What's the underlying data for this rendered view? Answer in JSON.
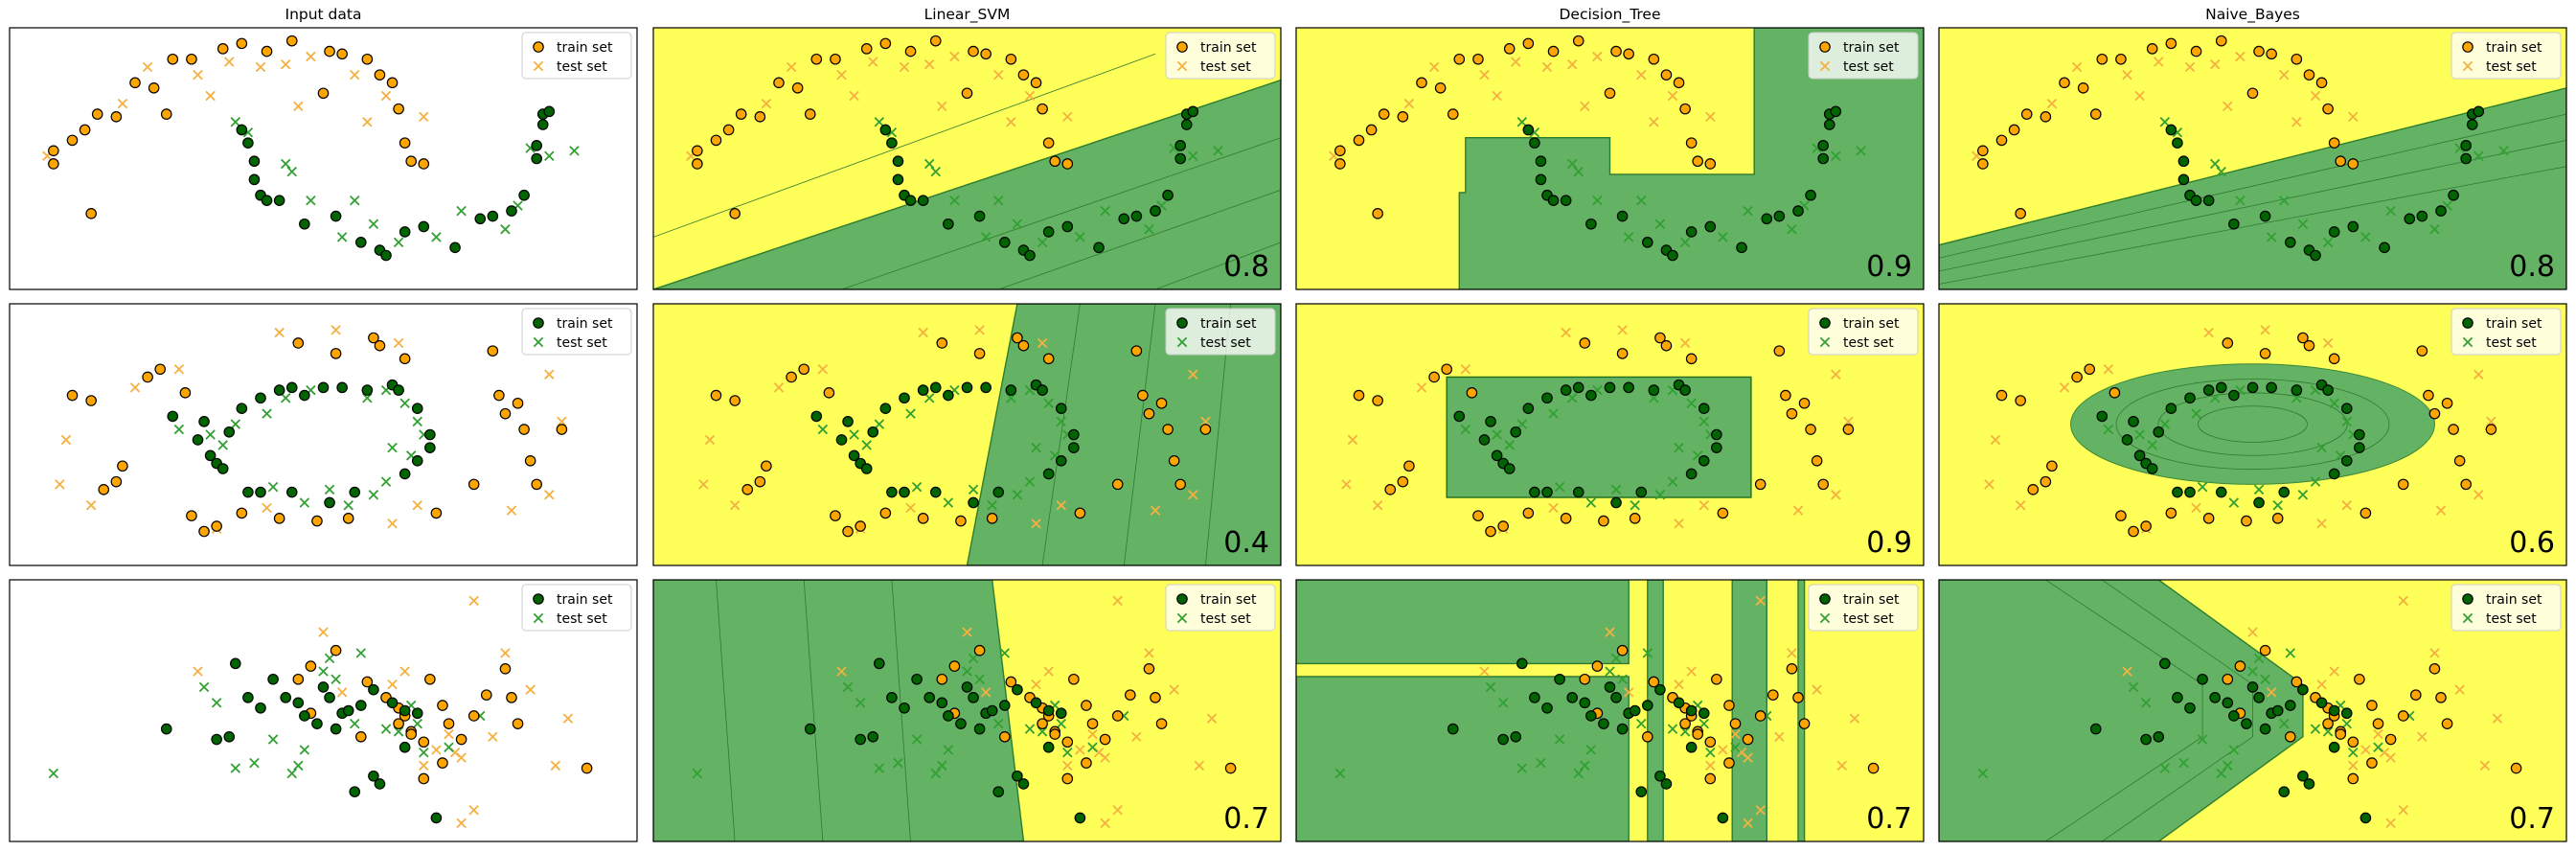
{
  "columns": [
    "Input data",
    "Linear_SVM",
    "Decision_Tree",
    "Naive_Bayes"
  ],
  "legend": {
    "train": "train set",
    "test": "test set"
  },
  "colors": {
    "class0": "#ffa500",
    "class1_dark": "#006400",
    "class1_test": "#32a032",
    "region_yellow": "#ffff5a",
    "region_green": "#64b264"
  },
  "chart_data": [
    {
      "type": "scatter",
      "dataset": "moons",
      "scores": [
        "",
        "0.8",
        "0.9",
        "0.8"
      ],
      "class0_color": "#ffa500",
      "class1_color": "#006400",
      "train0": [
        [
          0.07,
          0.47
        ],
        [
          0.1,
          0.43
        ],
        [
          0.07,
          0.52
        ],
        [
          0.12,
          0.39
        ],
        [
          0.14,
          0.33
        ],
        [
          0.17,
          0.34
        ],
        [
          0.2,
          0.21
        ],
        [
          0.23,
          0.23
        ],
        [
          0.26,
          0.12
        ],
        [
          0.29,
          0.12
        ],
        [
          0.34,
          0.08
        ],
        [
          0.37,
          0.06
        ],
        [
          0.41,
          0.09
        ],
        [
          0.45,
          0.05
        ],
        [
          0.51,
          0.09
        ],
        [
          0.53,
          0.1
        ],
        [
          0.57,
          0.12
        ],
        [
          0.59,
          0.18
        ],
        [
          0.61,
          0.21
        ],
        [
          0.62,
          0.31
        ],
        [
          0.63,
          0.44
        ],
        [
          0.64,
          0.51
        ],
        [
          0.66,
          0.52
        ],
        [
          0.5,
          0.25
        ],
        [
          0.25,
          0.33
        ],
        [
          0.13,
          0.71
        ]
      ],
      "test0": [
        [
          0.06,
          0.49
        ],
        [
          0.18,
          0.29
        ],
        [
          0.22,
          0.15
        ],
        [
          0.3,
          0.18
        ],
        [
          0.35,
          0.13
        ],
        [
          0.4,
          0.15
        ],
        [
          0.44,
          0.14
        ],
        [
          0.48,
          0.11
        ],
        [
          0.55,
          0.18
        ],
        [
          0.6,
          0.26
        ],
        [
          0.66,
          0.34
        ],
        [
          0.57,
          0.36
        ],
        [
          0.46,
          0.3
        ],
        [
          0.32,
          0.26
        ]
      ],
      "train1": [
        [
          0.37,
          0.39
        ],
        [
          0.38,
          0.44
        ],
        [
          0.39,
          0.51
        ],
        [
          0.39,
          0.58
        ],
        [
          0.4,
          0.64
        ],
        [
          0.41,
          0.66
        ],
        [
          0.43,
          0.66
        ],
        [
          0.47,
          0.75
        ],
        [
          0.52,
          0.72
        ],
        [
          0.56,
          0.82
        ],
        [
          0.59,
          0.85
        ],
        [
          0.63,
          0.78
        ],
        [
          0.71,
          0.84
        ],
        [
          0.75,
          0.73
        ],
        [
          0.77,
          0.72
        ],
        [
          0.8,
          0.7
        ],
        [
          0.82,
          0.64
        ],
        [
          0.84,
          0.5
        ],
        [
          0.84,
          0.45
        ],
        [
          0.85,
          0.37
        ],
        [
          0.85,
          0.33
        ],
        [
          0.86,
          0.32
        ],
        [
          0.6,
          0.87
        ],
        [
          0.66,
          0.76
        ]
      ],
      "test1": [
        [
          0.36,
          0.36
        ],
        [
          0.38,
          0.4
        ],
        [
          0.44,
          0.52
        ],
        [
          0.45,
          0.55
        ],
        [
          0.48,
          0.66
        ],
        [
          0.53,
          0.8
        ],
        [
          0.58,
          0.75
        ],
        [
          0.62,
          0.82
        ],
        [
          0.68,
          0.8
        ],
        [
          0.72,
          0.7
        ],
        [
          0.79,
          0.77
        ],
        [
          0.81,
          0.68
        ],
        [
          0.83,
          0.46
        ],
        [
          0.86,
          0.49
        ],
        [
          0.9,
          0.47
        ],
        [
          0.55,
          0.66
        ]
      ]
    },
    {
      "type": "scatter",
      "dataset": "circles",
      "scores": [
        "",
        "0.4",
        "0.9",
        "0.6"
      ],
      "class0_color": "#ffa500",
      "class1_color": "#006400",
      "train0": [
        [
          0.1,
          0.35
        ],
        [
          0.13,
          0.37
        ],
        [
          0.17,
          0.68
        ],
        [
          0.18,
          0.62
        ],
        [
          0.15,
          0.71
        ],
        [
          0.22,
          0.28
        ],
        [
          0.24,
          0.25
        ],
        [
          0.28,
          0.34
        ],
        [
          0.33,
          0.85
        ],
        [
          0.37,
          0.8
        ],
        [
          0.46,
          0.15
        ],
        [
          0.52,
          0.19
        ],
        [
          0.58,
          0.13
        ],
        [
          0.59,
          0.16
        ],
        [
          0.63,
          0.21
        ],
        [
          0.77,
          0.18
        ],
        [
          0.78,
          0.35
        ],
        [
          0.79,
          0.42
        ],
        [
          0.82,
          0.48
        ],
        [
          0.83,
          0.6
        ],
        [
          0.84,
          0.69
        ],
        [
          0.74,
          0.69
        ],
        [
          0.68,
          0.8
        ],
        [
          0.54,
          0.82
        ],
        [
          0.43,
          0.82
        ],
        [
          0.49,
          0.83
        ],
        [
          0.29,
          0.81
        ],
        [
          0.31,
          0.87
        ],
        [
          0.81,
          0.38
        ],
        [
          0.88,
          0.48
        ]
      ],
      "test0": [
        [
          0.09,
          0.52
        ],
        [
          0.08,
          0.69
        ],
        [
          0.13,
          0.77
        ],
        [
          0.2,
          0.32
        ],
        [
          0.27,
          0.25
        ],
        [
          0.43,
          0.11
        ],
        [
          0.52,
          0.1
        ],
        [
          0.62,
          0.15
        ],
        [
          0.86,
          0.27
        ],
        [
          0.88,
          0.45
        ],
        [
          0.86,
          0.73
        ],
        [
          0.8,
          0.79
        ],
        [
          0.61,
          0.84
        ],
        [
          0.65,
          0.77
        ],
        [
          0.33,
          0.86
        ],
        [
          0.41,
          0.78
        ]
      ],
      "train1": [
        [
          0.26,
          0.43
        ],
        [
          0.3,
          0.52
        ],
        [
          0.32,
          0.58
        ],
        [
          0.33,
          0.61
        ],
        [
          0.34,
          0.63
        ],
        [
          0.31,
          0.45
        ],
        [
          0.37,
          0.4
        ],
        [
          0.4,
          0.36
        ],
        [
          0.43,
          0.33
        ],
        [
          0.45,
          0.32
        ],
        [
          0.47,
          0.35
        ],
        [
          0.5,
          0.32
        ],
        [
          0.53,
          0.32
        ],
        [
          0.57,
          0.33
        ],
        [
          0.61,
          0.31
        ],
        [
          0.62,
          0.33
        ],
        [
          0.65,
          0.4
        ],
        [
          0.67,
          0.5
        ],
        [
          0.67,
          0.55
        ],
        [
          0.65,
          0.6
        ],
        [
          0.63,
          0.65
        ],
        [
          0.55,
          0.72
        ],
        [
          0.51,
          0.76
        ],
        [
          0.45,
          0.72
        ],
        [
          0.4,
          0.72
        ],
        [
          0.38,
          0.72
        ],
        [
          0.35,
          0.49
        ]
      ],
      "test1": [
        [
          0.27,
          0.48
        ],
        [
          0.32,
          0.5
        ],
        [
          0.34,
          0.54
        ],
        [
          0.36,
          0.46
        ],
        [
          0.41,
          0.42
        ],
        [
          0.44,
          0.36
        ],
        [
          0.48,
          0.33
        ],
        [
          0.57,
          0.36
        ],
        [
          0.6,
          0.33
        ],
        [
          0.65,
          0.45
        ],
        [
          0.66,
          0.5
        ],
        [
          0.64,
          0.58
        ],
        [
          0.6,
          0.68
        ],
        [
          0.58,
          0.73
        ],
        [
          0.54,
          0.77
        ],
        [
          0.51,
          0.71
        ],
        [
          0.47,
          0.76
        ],
        [
          0.42,
          0.7
        ],
        [
          0.63,
          0.38
        ],
        [
          0.61,
          0.55
        ]
      ]
    },
    {
      "type": "scatter",
      "dataset": "linear",
      "scores": [
        "",
        "0.7",
        "0.7",
        "0.7"
      ],
      "class0_color": "#ffa500",
      "class1_color": "#006400",
      "train0": [
        [
          0.46,
          0.38
        ],
        [
          0.48,
          0.33
        ],
        [
          0.52,
          0.27
        ],
        [
          0.57,
          0.39
        ],
        [
          0.6,
          0.45
        ],
        [
          0.62,
          0.49
        ],
        [
          0.63,
          0.52
        ],
        [
          0.64,
          0.58
        ],
        [
          0.66,
          0.62
        ],
        [
          0.67,
          0.38
        ],
        [
          0.69,
          0.48
        ],
        [
          0.7,
          0.55
        ],
        [
          0.72,
          0.61
        ],
        [
          0.74,
          0.52
        ],
        [
          0.76,
          0.44
        ],
        [
          0.79,
          0.34
        ],
        [
          0.8,
          0.45
        ],
        [
          0.81,
          0.55
        ],
        [
          0.69,
          0.7
        ],
        [
          0.66,
          0.76
        ],
        [
          0.64,
          0.59
        ],
        [
          0.92,
          0.72
        ],
        [
          0.48,
          0.51
        ],
        [
          0.56,
          0.6
        ],
        [
          0.62,
          0.55
        ]
      ],
      "test0": [
        [
          0.3,
          0.35
        ],
        [
          0.5,
          0.2
        ],
        [
          0.53,
          0.43
        ],
        [
          0.61,
          0.4
        ],
        [
          0.63,
          0.35
        ],
        [
          0.68,
          0.65
        ],
        [
          0.7,
          0.59
        ],
        [
          0.72,
          0.68
        ],
        [
          0.74,
          0.88
        ],
        [
          0.72,
          0.93
        ],
        [
          0.77,
          0.6
        ],
        [
          0.79,
          0.28
        ],
        [
          0.83,
          0.42
        ],
        [
          0.87,
          0.71
        ],
        [
          0.89,
          0.53
        ],
        [
          0.74,
          0.08
        ],
        [
          0.66,
          0.71
        ],
        [
          0.71,
          0.66
        ]
      ],
      "train1": [
        [
          0.25,
          0.57
        ],
        [
          0.33,
          0.61
        ],
        [
          0.35,
          0.6
        ],
        [
          0.36,
          0.32
        ],
        [
          0.38,
          0.45
        ],
        [
          0.4,
          0.49
        ],
        [
          0.42,
          0.38
        ],
        [
          0.44,
          0.45
        ],
        [
          0.46,
          0.47
        ],
        [
          0.47,
          0.52
        ],
        [
          0.49,
          0.55
        ],
        [
          0.5,
          0.41
        ],
        [
          0.51,
          0.45
        ],
        [
          0.52,
          0.57
        ],
        [
          0.53,
          0.51
        ],
        [
          0.54,
          0.5
        ],
        [
          0.56,
          0.48
        ],
        [
          0.58,
          0.42
        ],
        [
          0.58,
          0.75
        ],
        [
          0.59,
          0.78
        ],
        [
          0.61,
          0.47
        ],
        [
          0.63,
          0.5
        ],
        [
          0.65,
          0.51
        ],
        [
          0.63,
          0.64
        ],
        [
          0.55,
          0.81
        ],
        [
          0.68,
          0.91
        ]
      ],
      "test1": [
        [
          0.07,
          0.74
        ],
        [
          0.31,
          0.41
        ],
        [
          0.33,
          0.47
        ],
        [
          0.36,
          0.72
        ],
        [
          0.39,
          0.7
        ],
        [
          0.42,
          0.61
        ],
        [
          0.45,
          0.74
        ],
        [
          0.46,
          0.71
        ],
        [
          0.47,
          0.65
        ],
        [
          0.5,
          0.35
        ],
        [
          0.51,
          0.3
        ],
        [
          0.52,
          0.38
        ],
        [
          0.55,
          0.55
        ],
        [
          0.56,
          0.28
        ],
        [
          0.6,
          0.57
        ],
        [
          0.62,
          0.58
        ],
        [
          0.64,
          0.48
        ],
        [
          0.66,
          0.66
        ],
        [
          0.7,
          0.64
        ],
        [
          0.75,
          0.52
        ],
        [
          0.65,
          0.55
        ]
      ]
    }
  ]
}
